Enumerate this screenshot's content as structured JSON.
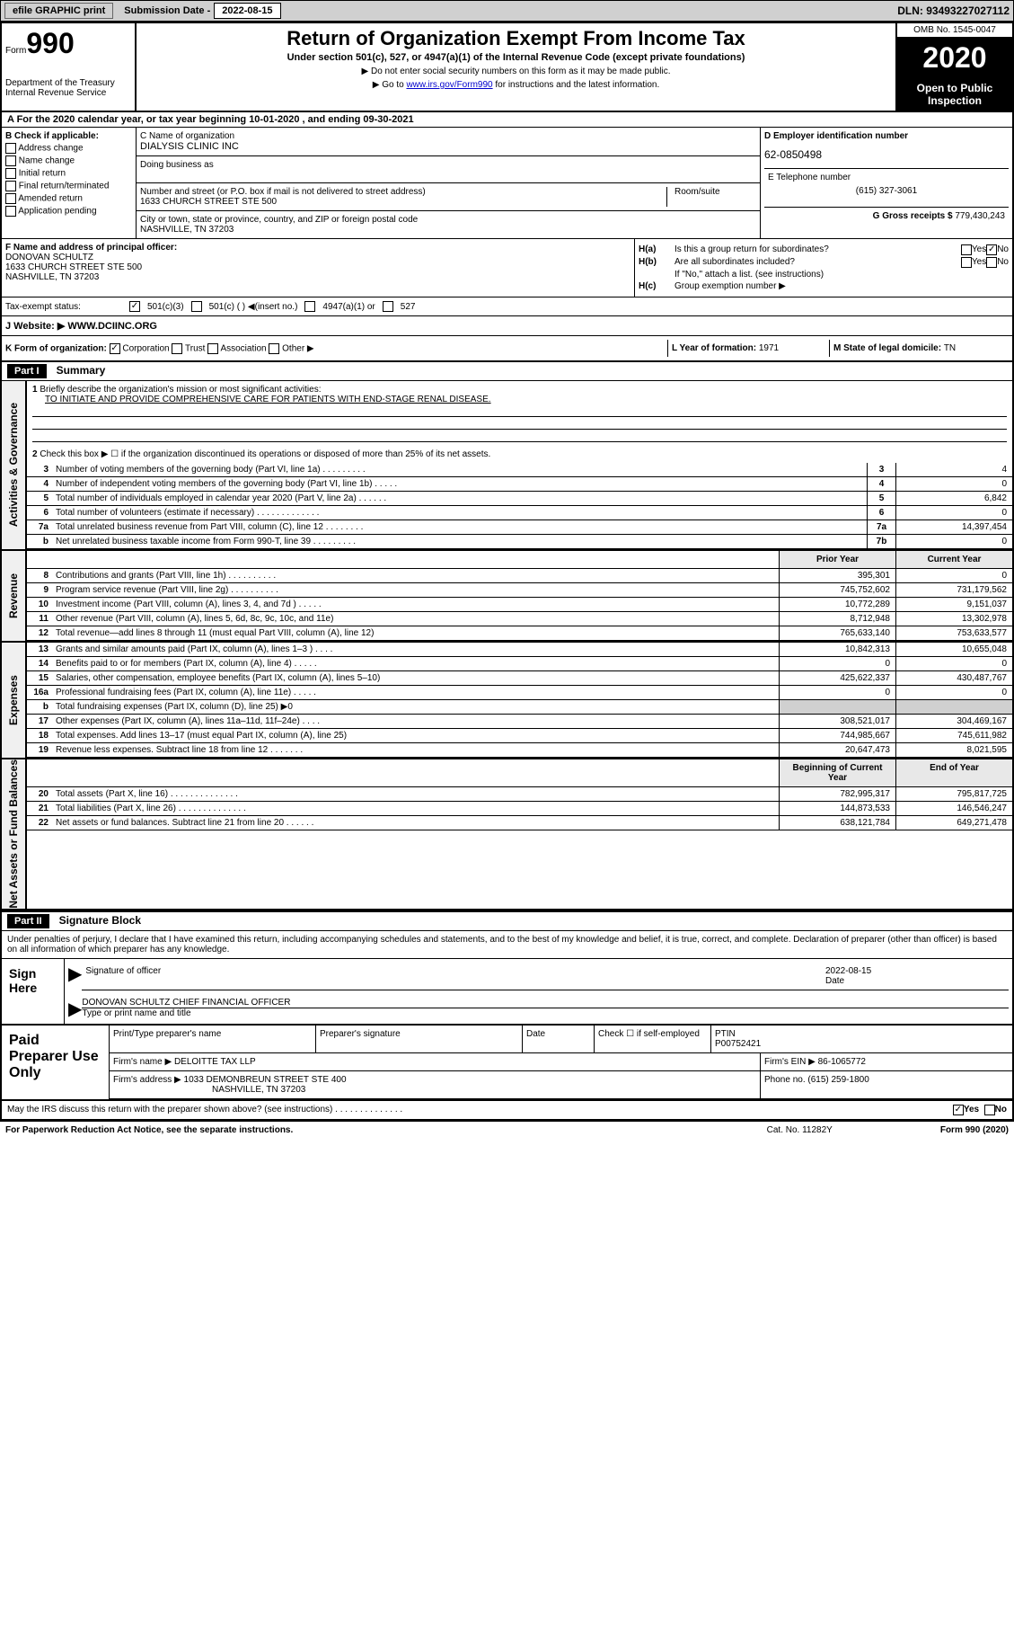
{
  "topbar": {
    "efile": "efile GRAPHIC print",
    "subdate_lbl": "Submission Date - ",
    "subdate": "2022-08-15",
    "dln": "DLN: 93493227027112"
  },
  "header": {
    "form_word": "Form",
    "form_num": "990",
    "dept": "Department of the Treasury\nInternal Revenue Service",
    "title": "Return of Organization Exempt From Income Tax",
    "subtitle": "Under section 501(c), 527, or 4947(a)(1) of the Internal Revenue Code (except private foundations)",
    "note1": "▶ Do not enter social security numbers on this form as it may be made public.",
    "note2_pre": "▶ Go to ",
    "note2_link": "www.irs.gov/Form990",
    "note2_post": " for instructions and the latest information.",
    "omb": "OMB No. 1545-0047",
    "year": "2020",
    "open": "Open to Public Inspection"
  },
  "rowA": "A For the 2020 calendar year, or tax year beginning 10-01-2020    , and ending 09-30-2021",
  "checkB": {
    "hdr": "B Check if applicable:",
    "items": [
      "Address change",
      "Name change",
      "Initial return",
      "Final return/terminated",
      "Amended return",
      "Application pending"
    ]
  },
  "nameC": {
    "lbl": "C Name of organization",
    "val": "DIALYSIS CLINIC INC",
    "dba": "Doing business as",
    "addr_lbl": "Number and street (or P.O. box if mail is not delivered to street address)",
    "addr": "1633 CHURCH STREET STE 500",
    "room_lbl": "Room/suite",
    "city_lbl": "City or town, state or province, country, and ZIP or foreign postal code",
    "city": "NASHVILLE, TN  37203"
  },
  "einD": {
    "lbl": "D Employer identification number",
    "val": "62-0850498",
    "phone_lbl": "E Telephone number",
    "phone": "(615) 327-3061",
    "gross_lbl": "G Gross receipts $ ",
    "gross": "779,430,243"
  },
  "sectF": {
    "lbl": "F  Name and address of principal officer:",
    "name": "DONOVAN SCHULTZ",
    "addr1": "1633 CHURCH STREET STE 500",
    "addr2": "NASHVILLE, TN  37203"
  },
  "sectH": {
    "ha_lbl": "H(a)",
    "ha_txt": "Is this a group return for subordinates?",
    "hb_lbl": "H(b)",
    "hb_txt": "Are all subordinates included?",
    "hb_note": "If \"No,\" attach a list. (see instructions)",
    "hc_lbl": "H(c)",
    "hc_txt": "Group exemption number ▶",
    "yes": "Yes",
    "no": "No"
  },
  "taxI": {
    "lbl": "Tax-exempt status:",
    "o1": "501(c)(3)",
    "o2": "501(c) (   ) ◀(insert no.)",
    "o3": "4947(a)(1) or",
    "o4": "527"
  },
  "webJ": {
    "lbl": "J    Website: ▶",
    "val": "WWW.DCIINC.ORG"
  },
  "rowK": {
    "lbl": "K Form of organization:",
    "o1": "Corporation",
    "o2": "Trust",
    "o3": "Association",
    "o4": "Other ▶",
    "l_lbl": "L Year of formation: ",
    "l_val": "1971",
    "m_lbl": "M State of legal domicile: ",
    "m_val": "TN"
  },
  "part1": {
    "hdr": "Part I",
    "title": "Summary",
    "side_gov": "Activities & Governance",
    "side_rev": "Revenue",
    "side_exp": "Expenses",
    "side_net": "Net Assets or Fund Balances",
    "q1": "Briefly describe the organization's mission or most significant activities:",
    "q1_ans": "TO INITIATE AND PROVIDE COMPREHENSIVE CARE FOR PATIENTS WITH END-STAGE RENAL DISEASE.",
    "q2": "Check this box ▶ ☐  if the organization discontinued its operations or disposed of more than 25% of its net assets.",
    "prior_hdr": "Prior Year",
    "curr_hdr": "Current Year",
    "begin_hdr": "Beginning of Current Year",
    "end_hdr": "End of Year",
    "lines_gov": [
      {
        "n": "3",
        "t": "Number of voting members of the governing body (Part VI, line 1a)   .    .    .    .    .    .    .    .    .",
        "c": "3",
        "v": "4"
      },
      {
        "n": "4",
        "t": "Number of independent voting members of the governing body (Part VI, line 1b)  .    .    .    .    .",
        "c": "4",
        "v": "0"
      },
      {
        "n": "5",
        "t": "Total number of individuals employed in calendar year 2020 (Part V, line 2a)   .    .    .    .    .    .",
        "c": "5",
        "v": "6,842"
      },
      {
        "n": "6",
        "t": "Total number of volunteers (estimate if necessary)   .    .    .    .    .    .    .    .    .    .    .    .    .",
        "c": "6",
        "v": "0"
      },
      {
        "n": "7a",
        "t": "Total unrelated business revenue from Part VIII, column (C), line 12  .    .    .    .    .    .    .    .",
        "c": "7a",
        "v": "14,397,454"
      },
      {
        "n": "b",
        "t": "Net unrelated business taxable income from Form 990-T, line 39   .    .    .    .    .    .    .    .    .",
        "c": "7b",
        "v": "0"
      }
    ],
    "lines_rev": [
      {
        "n": "8",
        "t": "Contributions and grants (Part VIII, line 1h)   .    .    .    .    .    .    .    .    .    .",
        "p": "395,301",
        "v": "0"
      },
      {
        "n": "9",
        "t": "Program service revenue (Part VIII, line 2g)   .    .    .    .    .    .    .    .    .    .",
        "p": "745,752,602",
        "v": "731,179,562"
      },
      {
        "n": "10",
        "t": "Investment income (Part VIII, column (A), lines 3, 4, and 7d )   .    .    .    .    .",
        "p": "10,772,289",
        "v": "9,151,037"
      },
      {
        "n": "11",
        "t": "Other revenue (Part VIII, column (A), lines 5, 6d, 8c, 9c, 10c, and 11e)",
        "p": "8,712,948",
        "v": "13,302,978"
      },
      {
        "n": "12",
        "t": "Total revenue—add lines 8 through 11 (must equal Part VIII, column (A), line 12)",
        "p": "765,633,140",
        "v": "753,633,577"
      }
    ],
    "lines_exp": [
      {
        "n": "13",
        "t": "Grants and similar amounts paid (Part IX, column (A), lines 1–3 )   .    .    .    .",
        "p": "10,842,313",
        "v": "10,655,048"
      },
      {
        "n": "14",
        "t": "Benefits paid to or for members (Part IX, column (A), line 4)   .    .    .    .    .",
        "p": "0",
        "v": "0"
      },
      {
        "n": "15",
        "t": "Salaries, other compensation, employee benefits (Part IX, column (A), lines 5–10)",
        "p": "425,622,337",
        "v": "430,487,767"
      },
      {
        "n": "16a",
        "t": "Professional fundraising fees (Part IX, column (A), line 11e)   .    .    .    .    .",
        "p": "0",
        "v": "0"
      },
      {
        "n": "b",
        "t": "Total fundraising expenses (Part IX, column (D), line 25) ▶0",
        "p": "",
        "v": "",
        "shaded": true
      },
      {
        "n": "17",
        "t": "Other expenses (Part IX, column (A), lines 11a–11d, 11f–24e)   .    .    .    .",
        "p": "308,521,017",
        "v": "304,469,167"
      },
      {
        "n": "18",
        "t": "Total expenses. Add lines 13–17 (must equal Part IX, column (A), line 25)",
        "p": "744,985,667",
        "v": "745,611,982"
      },
      {
        "n": "19",
        "t": "Revenue less expenses. Subtract line 18 from line 12  .    .    .    .    .    .    .",
        "p": "20,647,473",
        "v": "8,021,595"
      }
    ],
    "lines_net": [
      {
        "n": "20",
        "t": "Total assets (Part X, line 16)   .    .    .    .    .    .    .    .    .    .    .    .    .    .",
        "p": "782,995,317",
        "v": "795,817,725"
      },
      {
        "n": "21",
        "t": "Total liabilities (Part X, line 26)   .    .    .    .    .    .    .    .    .    .    .    .    .    .",
        "p": "144,873,533",
        "v": "146,546,247"
      },
      {
        "n": "22",
        "t": "Net assets or fund balances. Subtract line 21 from line 20  .    .    .    .    .    .",
        "p": "638,121,784",
        "v": "649,271,478"
      }
    ]
  },
  "part2": {
    "hdr": "Part II",
    "title": "Signature Block",
    "intro": "Under penalties of perjury, I declare that I have examined this return, including accompanying schedules and statements, and to the best of my knowledge and belief, it is true, correct, and complete. Declaration of preparer (other than officer) is based on all information of which preparer has any knowledge."
  },
  "sign": {
    "lbl": "Sign Here",
    "sig_lbl": "Signature of officer",
    "date_lbl": "Date",
    "date": "2022-08-15",
    "name": "DONOVAN SCHULTZ  CHIEF FINANCIAL OFFICER",
    "name_lbl": "Type or print name and title"
  },
  "prep": {
    "lbl": "Paid Preparer Use Only",
    "c1": "Print/Type preparer's name",
    "c2": "Preparer's signature",
    "c3": "Date",
    "c4_lbl": "Check ☐ if self-employed",
    "c5_lbl": "PTIN",
    "c5": "P00752421",
    "firm_lbl": "Firm's name     ▶",
    "firm": "DELOITTE TAX LLP",
    "ein_lbl": "Firm's EIN ▶",
    "ein": "86-1065772",
    "addr_lbl": "Firm's address ▶",
    "addr1": "1033 DEMONBREUN STREET STE 400",
    "addr2": "NASHVILLE, TN  37203",
    "phone_lbl": "Phone no. ",
    "phone": "(615) 259-1800"
  },
  "footer": {
    "discuss": "May the IRS discuss this return with the preparer shown above? (see instructions)    .    .    .    .    .    .    .    .    .    .    .    .    .    .",
    "yes": "Yes",
    "no": "No",
    "pra": "For Paperwork Reduction Act Notice, see the separate instructions.",
    "cat": "Cat. No. 11282Y",
    "form": "Form 990 (2020)"
  }
}
